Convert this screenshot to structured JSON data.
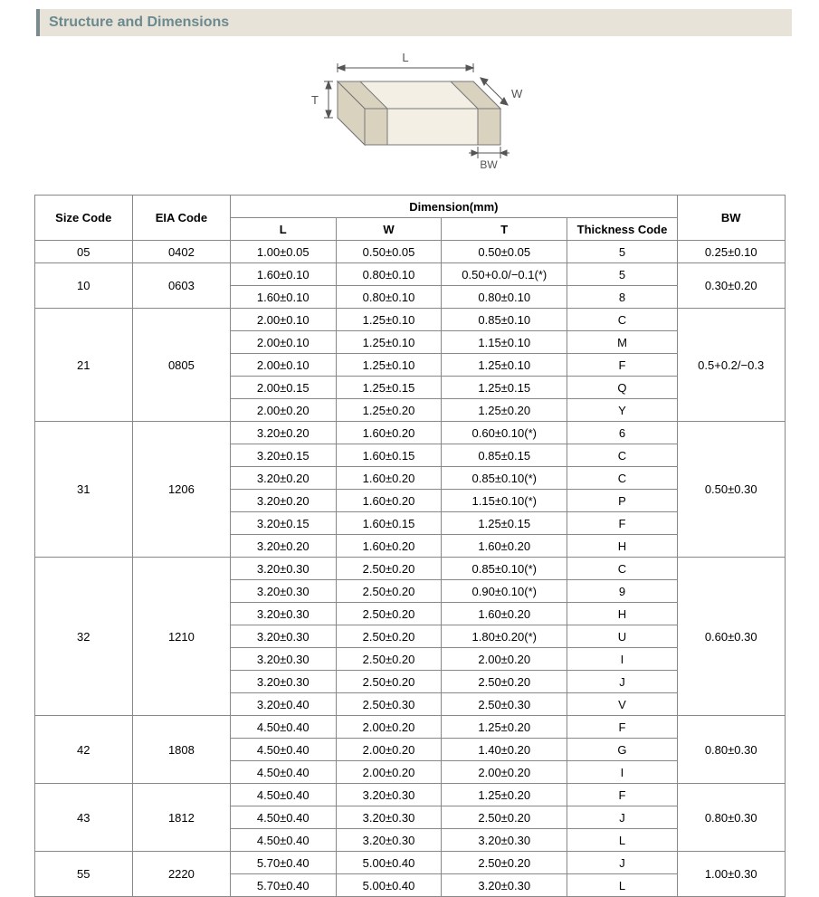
{
  "header": {
    "title": "Structure and Dimensions"
  },
  "diagram": {
    "labels": {
      "L": "L",
      "W": "W",
      "T": "T",
      "BW": "BW"
    },
    "stroke": "#888888",
    "fill": "#f5f2ea",
    "text_color": "#555555"
  },
  "table": {
    "headers": {
      "size": "Size Code",
      "eia": "EIA Code",
      "dim": "Dimension(mm)",
      "L": "L",
      "W": "W",
      "T": "T",
      "tc": "Thickness  Code",
      "bw": "BW"
    },
    "groups": [
      {
        "size": "05",
        "eia": "0402",
        "bw": "0.25±0.10",
        "rows": [
          {
            "L": "1.00±0.05",
            "W": "0.50±0.05",
            "T": "0.50±0.05",
            "tc": "5"
          }
        ]
      },
      {
        "size": "10",
        "eia": "0603",
        "bw": "0.30±0.20",
        "rows": [
          {
            "L": "1.60±0.10",
            "W": "0.80±0.10",
            "T": "0.50+0.0/−0.1(*)",
            "tc": "5"
          },
          {
            "L": "1.60±0.10",
            "W": "0.80±0.10",
            "T": "0.80±0.10",
            "tc": "8"
          }
        ]
      },
      {
        "size": "21",
        "eia": "0805",
        "bw": "0.5+0.2/−0.3",
        "rows": [
          {
            "L": "2.00±0.10",
            "W": "1.25±0.10",
            "T": "0.85±0.10",
            "tc": "C"
          },
          {
            "L": "2.00±0.10",
            "W": "1.25±0.10",
            "T": "1.15±0.10",
            "tc": "M"
          },
          {
            "L": "2.00±0.10",
            "W": "1.25±0.10",
            "T": "1.25±0.10",
            "tc": "F"
          },
          {
            "L": "2.00±0.15",
            "W": "1.25±0.15",
            "T": "1.25±0.15",
            "tc": "Q"
          },
          {
            "L": "2.00±0.20",
            "W": "1.25±0.20",
            "T": "1.25±0.20",
            "tc": "Y"
          }
        ]
      },
      {
        "size": "31",
        "eia": "1206",
        "bw": "0.50±0.30",
        "rows": [
          {
            "L": "3.20±0.20",
            "W": "1.60±0.20",
            "T": "0.60±0.10(*)",
            "tc": "6"
          },
          {
            "L": "3.20±0.15",
            "W": "1.60±0.15",
            "T": "0.85±0.15",
            "tc": "C"
          },
          {
            "L": "3.20±0.20",
            "W": "1.60±0.20",
            "T": "0.85±0.10(*)",
            "tc": "C"
          },
          {
            "L": "3.20±0.20",
            "W": "1.60±0.20",
            "T": "1.15±0.10(*)",
            "tc": "P"
          },
          {
            "L": "3.20±0.15",
            "W": "1.60±0.15",
            "T": "1.25±0.15",
            "tc": "F"
          },
          {
            "L": "3.20±0.20",
            "W": "1.60±0.20",
            "T": "1.60±0.20",
            "tc": "H"
          }
        ]
      },
      {
        "size": "32",
        "eia": "1210",
        "bw": "0.60±0.30",
        "rows": [
          {
            "L": "3.20±0.30",
            "W": "2.50±0.20",
            "T": "0.85±0.10(*)",
            "tc": "C"
          },
          {
            "L": "3.20±0.30",
            "W": "2.50±0.20",
            "T": "0.90±0.10(*)",
            "tc": "9"
          },
          {
            "L": "3.20±0.30",
            "W": "2.50±0.20",
            "T": "1.60±0.20",
            "tc": "H"
          },
          {
            "L": "3.20±0.30",
            "W": "2.50±0.20",
            "T": "1.80±0.20(*)",
            "tc": "U"
          },
          {
            "L": "3.20±0.30",
            "W": "2.50±0.20",
            "T": "2.00±0.20",
            "tc": "I"
          },
          {
            "L": "3.20±0.30",
            "W": "2.50±0.20",
            "T": "2.50±0.20",
            "tc": "J"
          },
          {
            "L": "3.20±0.40",
            "W": "2.50±0.30",
            "T": "2.50±0.30",
            "tc": "V"
          }
        ]
      },
      {
        "size": "42",
        "eia": "1808",
        "bw": "0.80±0.30",
        "rows": [
          {
            "L": "4.50±0.40",
            "W": "2.00±0.20",
            "T": "1.25±0.20",
            "tc": "F"
          },
          {
            "L": "4.50±0.40",
            "W": "2.00±0.20",
            "T": "1.40±0.20",
            "tc": "G"
          },
          {
            "L": "4.50±0.40",
            "W": "2.00±0.20",
            "T": "2.00±0.20",
            "tc": "I"
          }
        ]
      },
      {
        "size": "43",
        "eia": "1812",
        "bw": "0.80±0.30",
        "rows": [
          {
            "L": "4.50±0.40",
            "W": "3.20±0.30",
            "T": "1.25±0.20",
            "tc": "F"
          },
          {
            "L": "4.50±0.40",
            "W": "3.20±0.30",
            "T": "2.50±0.20",
            "tc": "J"
          },
          {
            "L": "4.50±0.40",
            "W": "3.20±0.30",
            "T": "3.20±0.30",
            "tc": "L"
          }
        ]
      },
      {
        "size": "55",
        "eia": "2220",
        "bw": "1.00±0.30",
        "rows": [
          {
            "L": "5.70±0.40",
            "W": "5.00±0.40",
            "T": "2.50±0.20",
            "tc": "J"
          },
          {
            "L": "5.70±0.40",
            "W": "5.00±0.40",
            "T": "3.20±0.30",
            "tc": "L"
          }
        ]
      }
    ]
  }
}
